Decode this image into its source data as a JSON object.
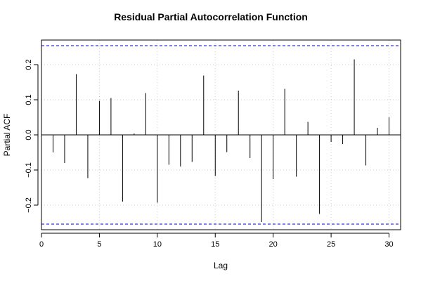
{
  "chart_data": {
    "type": "bar",
    "title": "Residual Partial Autocorrelation Function",
    "xlabel": "Lag",
    "ylabel": "Partial ACF",
    "xlim": [
      0,
      31
    ],
    "ylim": [
      -0.27,
      0.27
    ],
    "x_ticks": [
      0,
      5,
      10,
      15,
      20,
      25,
      30
    ],
    "y_ticks": [
      -0.2,
      -0.1,
      0.0,
      0.1,
      0.2
    ],
    "y_tick_labels": [
      "−0.2",
      "−0.1",
      "0.0",
      "0.1",
      "0.2"
    ],
    "grid": true,
    "confidence_bounds": [
      0.254,
      -0.254
    ],
    "colors": {
      "bars": "#000000",
      "bounds": "#0000cc",
      "grid": "#cccccc",
      "zero_line": "#000000"
    },
    "series": [
      {
        "lags": [
          1,
          2,
          3,
          4,
          5,
          6,
          7,
          8,
          9,
          10,
          11,
          12,
          13,
          14,
          15,
          16,
          17,
          18,
          19,
          20,
          21,
          22,
          23,
          24,
          25,
          26,
          27,
          28,
          29,
          30
        ],
        "values": [
          -0.05,
          -0.08,
          0.173,
          -0.123,
          0.097,
          0.105,
          -0.19,
          0.004,
          0.119,
          -0.193,
          -0.085,
          -0.09,
          -0.077,
          0.169,
          -0.117,
          -0.049,
          0.126,
          -0.066,
          -0.248,
          -0.126,
          0.131,
          -0.119,
          0.037,
          -0.225,
          -0.02,
          -0.026,
          0.215,
          -0.087,
          0.02,
          0.05
        ]
      }
    ]
  }
}
